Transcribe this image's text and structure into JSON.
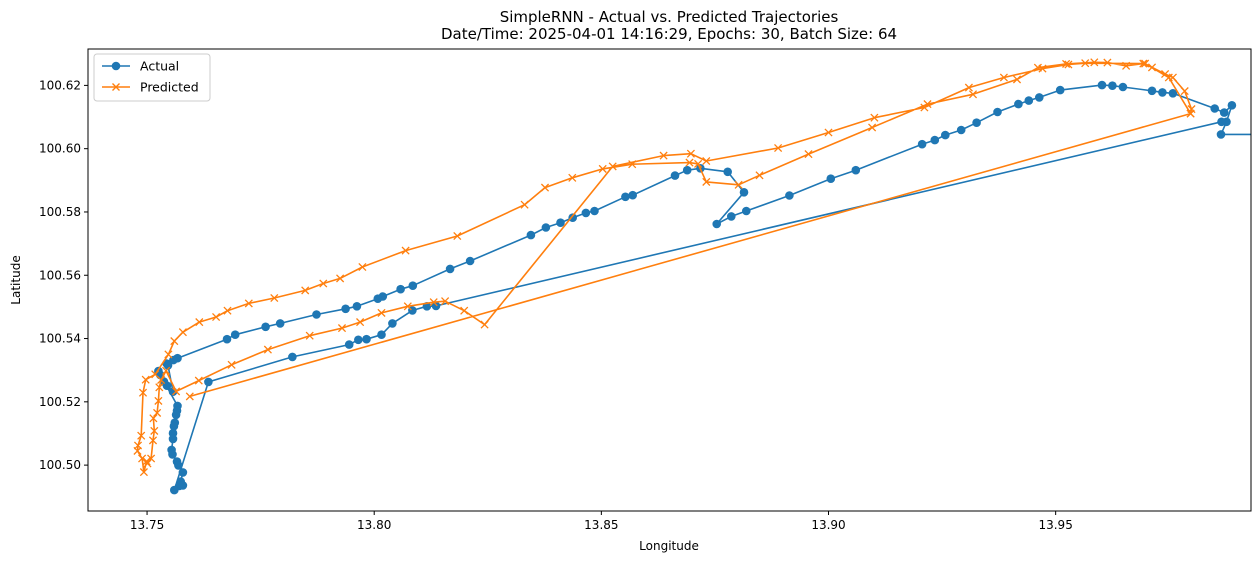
{
  "chart_data": {
    "type": "line",
    "title": "SimpleRNN - Actual vs. Predicted Trajectories",
    "subtitle": "Date/Time: 2025-04-01 14:16:29, Epochs: 30, Batch Size: 64",
    "xlabel": "Longitude",
    "ylabel": "Latitude",
    "xlim": [
      13.737,
      13.993
    ],
    "ylim": [
      100.4855,
      100.6315
    ],
    "xticks": [
      "13.75",
      "13.80",
      "13.85",
      "13.90",
      "13.95"
    ],
    "yticks": [
      "100.50",
      "100.52",
      "100.54",
      "100.56",
      "100.58",
      "100.60",
      "100.62"
    ],
    "grid": false,
    "legend_position": "top-left",
    "series": [
      {
        "name": "Actual",
        "color": "#1f77b4",
        "marker": "circle",
        "points": [
          [
            13.9985,
            100.6045
          ],
          [
            13.9864,
            100.6045
          ],
          [
            13.9876,
            100.6085
          ],
          [
            13.9888,
            100.6137
          ],
          [
            13.9871,
            100.6114
          ],
          [
            13.985,
            100.6127
          ],
          [
            13.9758,
            100.6175
          ],
          [
            13.9735,
            100.6178
          ],
          [
            13.9712,
            100.6183
          ],
          [
            13.9648,
            100.6195
          ],
          [
            13.9625,
            100.6199
          ],
          [
            13.9602,
            100.6201
          ],
          [
            13.951,
            100.6185
          ],
          [
            13.9464,
            100.6162
          ],
          [
            13.9441,
            100.6152
          ],
          [
            13.9418,
            100.6141
          ],
          [
            13.9372,
            100.6116
          ],
          [
            13.9326,
            100.6082
          ],
          [
            13.9292,
            100.6059
          ],
          [
            13.9257,
            100.6043
          ],
          [
            13.9234,
            100.6027
          ],
          [
            13.9206,
            100.6014
          ],
          [
            13.906,
            100.5932
          ],
          [
            13.9005,
            100.5905
          ],
          [
            13.8914,
            100.5852
          ],
          [
            13.8819,
            100.5803
          ],
          [
            13.8786,
            100.5786
          ],
          [
            13.8754,
            100.5762
          ],
          [
            13.8814,
            100.5862
          ],
          [
            13.8778,
            100.5927
          ],
          [
            13.8718,
            100.5938
          ],
          [
            13.8689,
            100.5932
          ],
          [
            13.8662,
            100.5915
          ],
          [
            13.8569,
            100.5853
          ],
          [
            13.8553,
            100.5848
          ],
          [
            13.8485,
            100.5803
          ],
          [
            13.8466,
            100.5797
          ],
          [
            13.8437,
            100.5782
          ],
          [
            13.841,
            100.5766
          ],
          [
            13.8378,
            100.5751
          ],
          [
            13.8345,
            100.5727
          ],
          [
            13.8211,
            100.5645
          ],
          [
            13.8167,
            100.562
          ],
          [
            13.8085,
            100.5567
          ],
          [
            13.8058,
            100.5556
          ],
          [
            13.8019,
            100.5533
          ],
          [
            13.8008,
            100.5526
          ],
          [
            13.7962,
            100.5502
          ],
          [
            13.7937,
            100.5494
          ],
          [
            13.7873,
            100.5476
          ],
          [
            13.7793,
            100.5448
          ],
          [
            13.7761,
            100.5437
          ],
          [
            13.7694,
            100.5412
          ],
          [
            13.7676,
            100.5398
          ],
          [
            13.7567,
            100.5338
          ],
          [
            13.7558,
            100.5332
          ],
          [
            13.7543,
            100.5321
          ],
          [
            13.7546,
            100.5315
          ],
          [
            13.7557,
            100.5232
          ],
          [
            13.7544,
            100.5251
          ],
          [
            13.7537,
            100.5264
          ],
          [
            13.7529,
            100.5285
          ],
          [
            13.7525,
            100.5297
          ],
          [
            13.7567,
            100.5187
          ],
          [
            13.7566,
            100.5172
          ],
          [
            13.7564,
            100.5159
          ],
          [
            13.7561,
            100.5134
          ],
          [
            13.7559,
            100.5123
          ],
          [
            13.7557,
            100.5101
          ],
          [
            13.7557,
            100.5083
          ],
          [
            13.7554,
            100.5048
          ],
          [
            13.7556,
            100.5034
          ],
          [
            13.7566,
            100.5011
          ],
          [
            13.7569,
            100.4999
          ],
          [
            13.7579,
            100.4977
          ],
          [
            13.7574,
            100.4948
          ],
          [
            13.7579,
            100.4936
          ],
          [
            13.7571,
            100.4934
          ],
          [
            13.756,
            100.4921
          ],
          [
            13.7635,
            100.5263
          ],
          [
            13.782,
            100.5342
          ],
          [
            13.7945,
            100.5381
          ],
          [
            13.7965,
            100.5396
          ],
          [
            13.7983,
            100.5398
          ],
          [
            13.8016,
            100.5412
          ],
          [
            13.804,
            100.5448
          ],
          [
            13.8084,
            100.5489
          ],
          [
            13.8116,
            100.5502
          ],
          [
            13.8136,
            100.5503
          ],
          [
            13.9865,
            100.6085
          ]
        ]
      },
      {
        "name": "Predicted",
        "color": "#ff7f0e",
        "marker": "x",
        "points": [
          [
            13.9797,
            100.6111
          ],
          [
            13.9799,
            100.6125
          ],
          [
            13.9784,
            100.6182
          ],
          [
            13.9758,
            100.6225
          ],
          [
            13.9741,
            100.6236
          ],
          [
            13.9712,
            100.6257
          ],
          [
            13.9693,
            100.6269
          ],
          [
            13.9655,
            100.6262
          ],
          [
            13.9614,
            100.6272
          ],
          [
            13.9585,
            100.6273
          ],
          [
            13.9523,
            100.6268
          ],
          [
            13.9461,
            100.6256
          ],
          [
            13.9415,
            100.6219
          ],
          [
            13.9318,
            100.6172
          ],
          [
            13.9218,
            100.6141
          ],
          [
            13.9096,
            100.6067
          ],
          [
            13.8956,
            100.5983
          ],
          [
            13.8848,
            100.5916
          ],
          [
            13.8802,
            100.5886
          ],
          [
            13.8731,
            100.5895
          ],
          [
            13.8713,
            100.5952
          ],
          [
            13.8694,
            100.5956
          ],
          [
            13.8568,
            100.5951
          ],
          [
            13.8503,
            100.5936
          ],
          [
            13.8436,
            100.5908
          ],
          [
            13.8376,
            100.5877
          ],
          [
            13.8331,
            100.5823
          ],
          [
            13.8183,
            100.5724
          ],
          [
            13.8069,
            100.5678
          ],
          [
            13.7974,
            100.5626
          ],
          [
            13.7925,
            100.559
          ],
          [
            13.7888,
            100.5574
          ],
          [
            13.7848,
            100.5552
          ],
          [
            13.778,
            100.5528
          ],
          [
            13.7724,
            100.5511
          ],
          [
            13.7677,
            100.5488
          ],
          [
            13.7652,
            100.5468
          ],
          [
            13.7615,
            100.5452
          ],
          [
            13.7579,
            100.542
          ],
          [
            13.756,
            100.5392
          ],
          [
            13.7547,
            100.535
          ],
          [
            13.7518,
            100.5287
          ],
          [
            13.7497,
            100.527
          ],
          [
            13.7491,
            100.5229
          ],
          [
            13.7487,
            100.5093
          ],
          [
            13.748,
            100.5062
          ],
          [
            13.7479,
            100.5045
          ],
          [
            13.7489,
            100.5021
          ],
          [
            13.7493,
            100.4978
          ],
          [
            13.7499,
            100.5012
          ],
          [
            13.7501,
            100.5005
          ],
          [
            13.7509,
            100.5021
          ],
          [
            13.7513,
            100.5078
          ],
          [
            13.7516,
            100.5108
          ],
          [
            13.7514,
            100.5148
          ],
          [
            13.7522,
            100.5165
          ],
          [
            13.7525,
            100.5203
          ],
          [
            13.7527,
            100.5246
          ],
          [
            13.7531,
            100.5269
          ],
          [
            13.7542,
            100.5298
          ],
          [
            13.7564,
            100.5233
          ],
          [
            13.7614,
            100.5267
          ],
          [
            13.7686,
            100.5317
          ],
          [
            13.7766,
            100.5365
          ],
          [
            13.7858,
            100.5409
          ],
          [
            13.7929,
            100.5433
          ],
          [
            13.7969,
            100.5452
          ],
          [
            13.8016,
            100.5481
          ],
          [
            13.8074,
            100.5502
          ],
          [
            13.8131,
            100.5515
          ],
          [
            13.8156,
            100.5518
          ],
          [
            13.8198,
            100.5488
          ],
          [
            13.8243,
            100.5444
          ],
          [
            13.8525,
            100.5944
          ],
          [
            13.8637,
            100.5978
          ],
          [
            13.8697,
            100.5984
          ],
          [
            13.8731,
            100.5961
          ],
          [
            13.8889,
            100.6002
          ],
          [
            13.9,
            100.6051
          ],
          [
            13.9101,
            100.6098
          ],
          [
            13.9211,
            100.613
          ],
          [
            13.9309,
            100.6193
          ],
          [
            13.9386,
            100.6225
          ],
          [
            13.9471,
            100.6253
          ],
          [
            13.9528,
            100.6266
          ],
          [
            13.9565,
            100.627
          ],
          [
            13.9697,
            100.6269
          ],
          [
            13.9749,
            100.6225
          ],
          [
            13.9797,
            100.6111
          ],
          [
            13.7594,
            100.5217
          ]
        ]
      }
    ]
  }
}
